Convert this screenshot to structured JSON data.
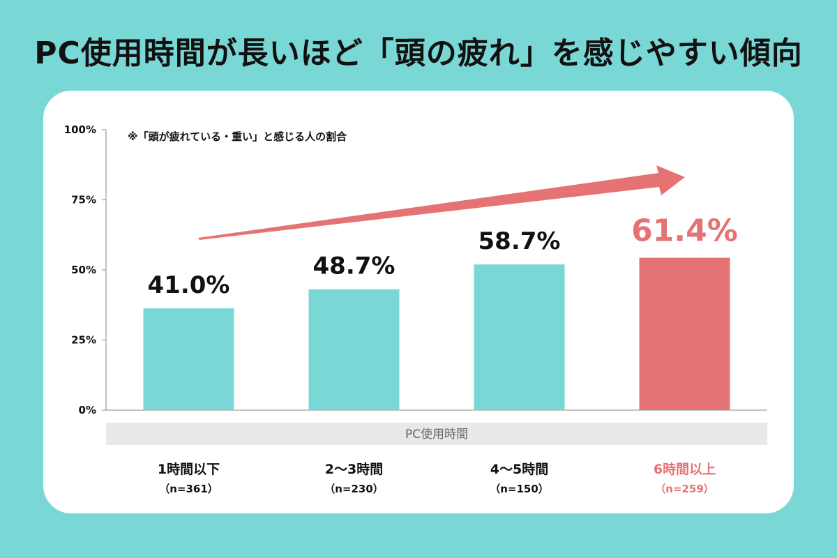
{
  "title": "PC使用時間が長いほど「頭の疲れ」を感じやすい傾向",
  "colors": {
    "background": "#79d8d6",
    "bar": "#79d8d6",
    "highlight": "#e57373",
    "axis_band": "#e8e8e8"
  },
  "chart_data": {
    "type": "bar",
    "note": "※「頭が疲れている・重い」と感じる人の割合",
    "xlabel": "PC使用時間",
    "ylim": [
      0,
      100
    ],
    "yticks": [
      "0%",
      "25%",
      "50%",
      "75%",
      "100%"
    ],
    "categories": [
      "1時間以下",
      "2〜3時間",
      "4〜5時間",
      "6時間以上"
    ],
    "sample_sizes": [
      "（n=361）",
      "（n=230）",
      "（n=150）",
      "（n=259）"
    ],
    "values": [
      41.0,
      48.7,
      58.7,
      61.4
    ],
    "value_labels": [
      "41.0%",
      "48.7%",
      "58.7%",
      "61.4%"
    ],
    "highlight_index": 3,
    "trend_arrow": true
  }
}
